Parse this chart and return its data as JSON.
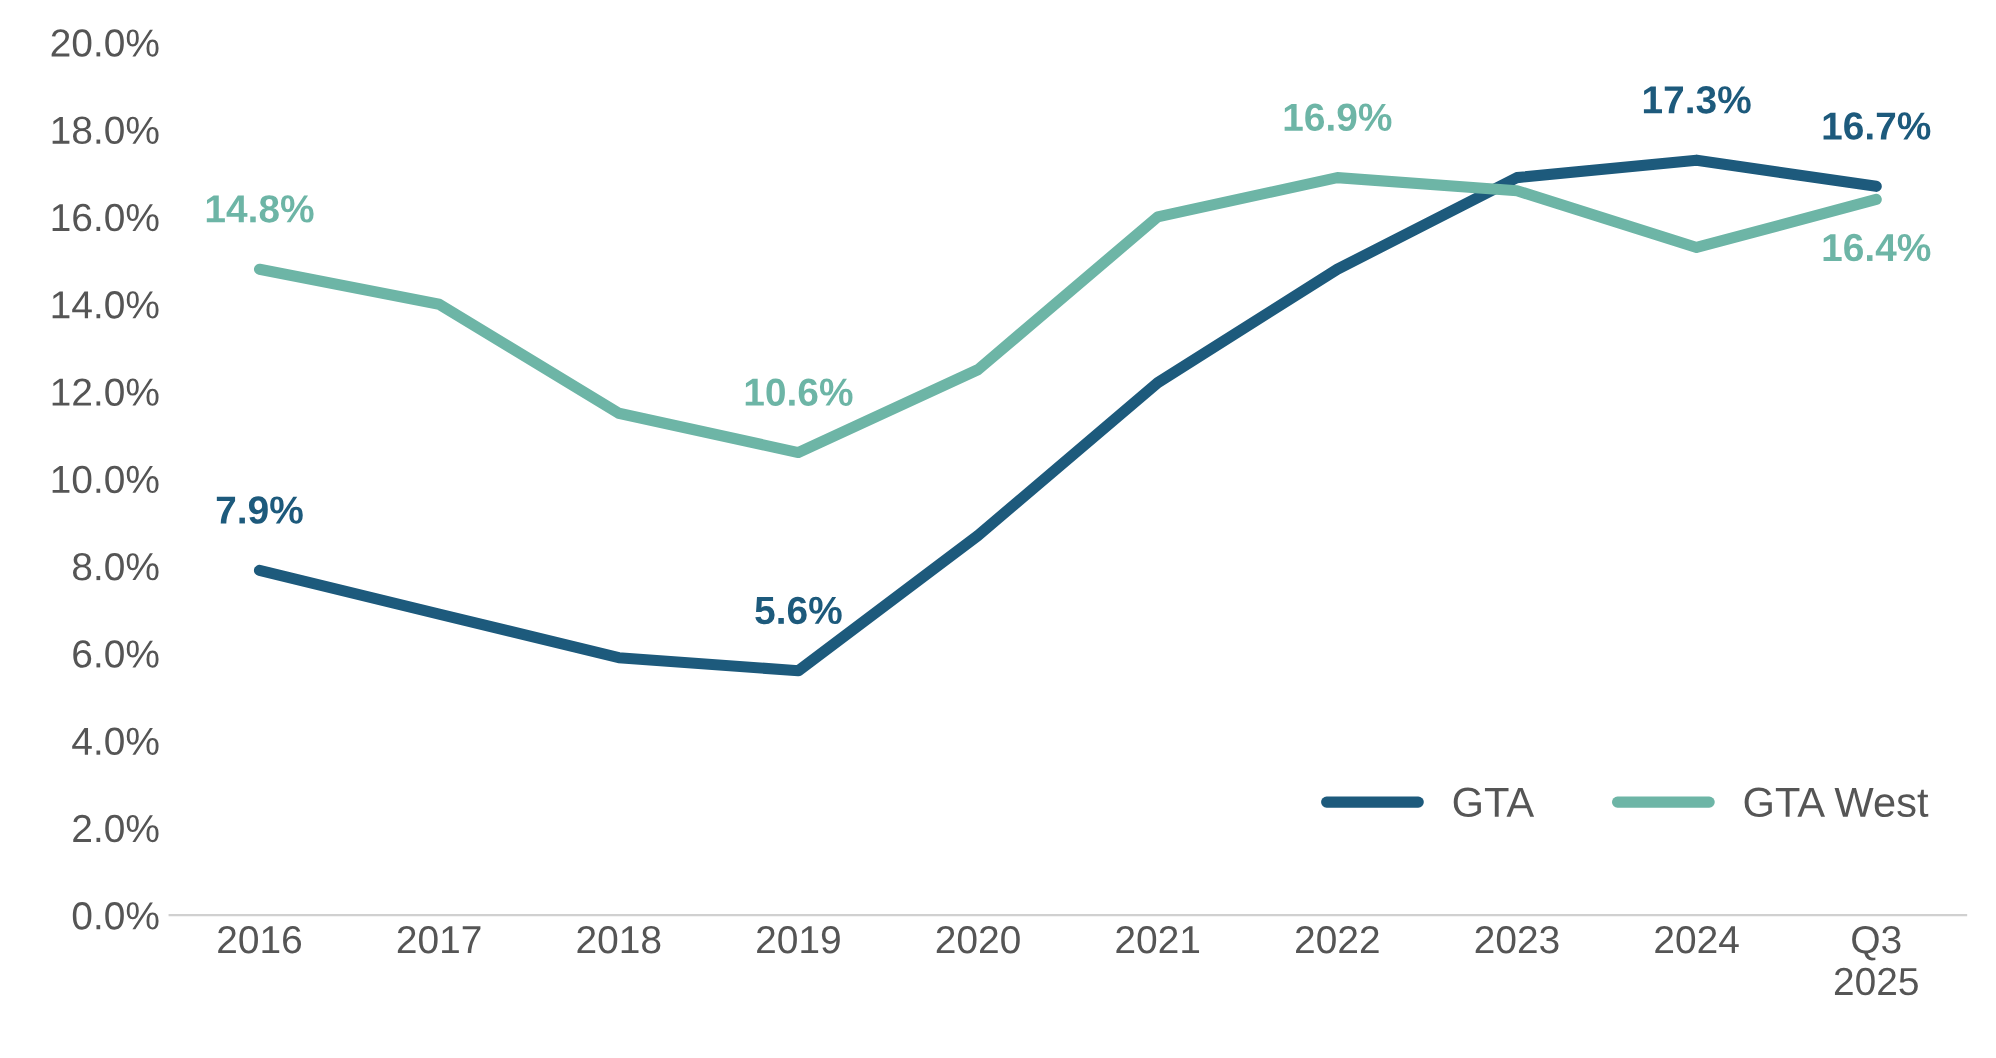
{
  "chart_data": {
    "type": "line",
    "categories": [
      "2016",
      "2017",
      "2018",
      "2019",
      "2020",
      "2021",
      "2022",
      "2023",
      "2024",
      "Q3\n2025"
    ],
    "series": [
      {
        "name": "GTA",
        "color": "#1d5a7c",
        "values": [
          7.9,
          6.9,
          5.9,
          5.6,
          8.7,
          12.2,
          14.8,
          16.9,
          17.3,
          16.7
        ],
        "value_labels": [
          "7.9%",
          null,
          null,
          "5.6%",
          null,
          null,
          null,
          null,
          "17.3%",
          "16.7%"
        ]
      },
      {
        "name": "GTA West",
        "color": "#6db5a6",
        "values": [
          14.8,
          14.0,
          11.5,
          10.6,
          12.5,
          16.0,
          16.9,
          16.6,
          15.3,
          16.4
        ],
        "value_labels": [
          "14.8%",
          null,
          null,
          "10.6%",
          null,
          null,
          "16.9%",
          null,
          null,
          "16.4%"
        ]
      }
    ],
    "ylim": [
      0,
      20
    ],
    "yticks": [
      {
        "value": 0,
        "label": "0.0%"
      },
      {
        "value": 2,
        "label": "2.0%"
      },
      {
        "value": 4,
        "label": "4.0%"
      },
      {
        "value": 6,
        "label": "6.0%"
      },
      {
        "value": 8,
        "label": "8.0%"
      },
      {
        "value": 10,
        "label": "10.0%"
      },
      {
        "value": 12,
        "label": "12.0%"
      },
      {
        "value": 14,
        "label": "14.0%"
      },
      {
        "value": 16,
        "label": "16.0%"
      },
      {
        "value": 18,
        "label": "18.0%"
      },
      {
        "value": 20,
        "label": "20.0%"
      }
    ],
    "grid": false,
    "legend": "bottom right",
    "marker": "none",
    "line_style": "solid"
  }
}
